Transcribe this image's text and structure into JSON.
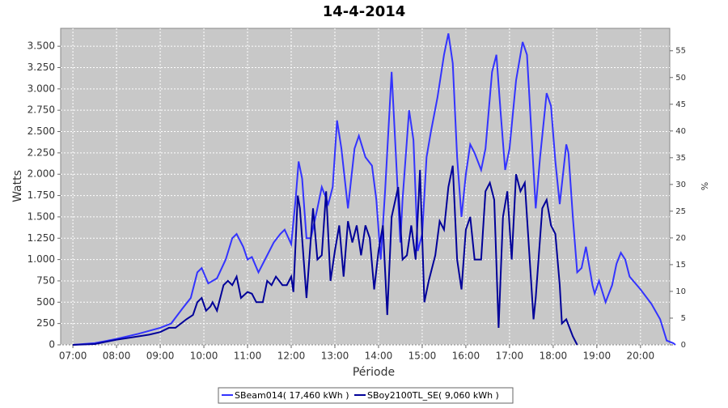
{
  "chart_data": {
    "type": "line",
    "title": "14-4-2014",
    "x_label": "Période",
    "y_label": "Watts",
    "y2_label": "%",
    "xlim": [
      6.72,
      20.67
    ],
    "xticks": [
      {
        "value": 7,
        "label": "07:00"
      },
      {
        "value": 8,
        "label": "08:00"
      },
      {
        "value": 9,
        "label": "09:00"
      },
      {
        "value": 10,
        "label": "10:00"
      },
      {
        "value": 11,
        "label": "11:00"
      },
      {
        "value": 12,
        "label": "12:00"
      },
      {
        "value": 13,
        "label": "13:00"
      },
      {
        "value": 14,
        "label": "14:00"
      },
      {
        "value": 15,
        "label": "15:00"
      },
      {
        "value": 16,
        "label": "16:00"
      },
      {
        "value": 17,
        "label": "17:00"
      },
      {
        "value": 18,
        "label": "18:00"
      },
      {
        "value": 19,
        "label": "19:00"
      },
      {
        "value": 20,
        "label": "20:00"
      }
    ],
    "ylim": [
      0,
      3710
    ],
    "yticks": [
      0,
      250,
      500,
      750,
      {
        "value": 1000,
        "label": "1.000"
      },
      {
        "value": 1250,
        "label": "1.250"
      },
      {
        "value": 1500,
        "label": "1.500"
      },
      {
        "value": 1750,
        "label": "1.750"
      },
      {
        "value": 2000,
        "label": "2.000"
      },
      {
        "value": 2250,
        "label": "2.250"
      },
      {
        "value": 2500,
        "label": "2.500"
      },
      {
        "value": 2750,
        "label": "2.750"
      },
      {
        "value": 3000,
        "label": "3.000"
      },
      {
        "value": 3250,
        "label": "3.250"
      },
      {
        "value": 3500,
        "label": "3.500"
      }
    ],
    "y2lim": [
      0,
      59.2
    ],
    "y2ticks": [
      0,
      5,
      10,
      15,
      20,
      25,
      30,
      35,
      40,
      45,
      50,
      55
    ],
    "grid": true,
    "series": [
      {
        "name": "SBeam014( 17,460 kWh )",
        "color": "#3333ff",
        "x": [
          7.0,
          7.5,
          8.0,
          8.5,
          9.0,
          9.25,
          9.5,
          9.7,
          9.85,
          9.95,
          10.1,
          10.3,
          10.5,
          10.65,
          10.75,
          10.9,
          11.0,
          11.1,
          11.25,
          11.4,
          11.6,
          11.75,
          11.85,
          12.0,
          12.1,
          12.17,
          12.25,
          12.35,
          12.45,
          12.6,
          12.7,
          12.85,
          12.95,
          13.05,
          13.15,
          13.3,
          13.45,
          13.55,
          13.7,
          13.85,
          13.95,
          14.05,
          14.15,
          14.3,
          14.4,
          14.5,
          14.55,
          14.7,
          14.8,
          14.9,
          15.0,
          15.1,
          15.2,
          15.35,
          15.5,
          15.6,
          15.7,
          15.8,
          15.9,
          16.0,
          16.1,
          16.2,
          16.35,
          16.45,
          16.6,
          16.7,
          16.8,
          16.9,
          17.0,
          17.15,
          17.3,
          17.4,
          17.5,
          17.6,
          17.7,
          17.85,
          17.95,
          18.05,
          18.15,
          18.3,
          18.35,
          18.45,
          18.55,
          18.65,
          18.75,
          18.9,
          18.95,
          19.05,
          19.2,
          19.35,
          19.45,
          19.55,
          19.65,
          19.75,
          20.0,
          20.25,
          20.45,
          20.6,
          20.75,
          20.8
        ],
        "values": [
          0,
          20,
          70,
          130,
          200,
          250,
          420,
          550,
          850,
          900,
          720,
          780,
          1000,
          1250,
          1300,
          1150,
          1000,
          1030,
          850,
          1000,
          1200,
          1300,
          1350,
          1180,
          1700,
          2150,
          1950,
          1250,
          1250,
          1600,
          1850,
          1650,
          1850,
          2630,
          2300,
          1600,
          2300,
          2450,
          2200,
          2100,
          1700,
          1000,
          1800,
          3200,
          2200,
          1200,
          1700,
          2750,
          2400,
          1100,
          1300,
          2200,
          2500,
          2900,
          3400,
          3650,
          3300,
          2200,
          1500,
          2000,
          2350,
          2250,
          2050,
          2300,
          3200,
          3400,
          2700,
          2050,
          2300,
          3100,
          3550,
          3400,
          2500,
          1600,
          2200,
          2950,
          2800,
          2150,
          1650,
          2350,
          2250,
          1500,
          850,
          900,
          1150,
          700,
          600,
          750,
          500,
          700,
          950,
          1080,
          1000,
          800,
          650,
          480,
          300,
          50,
          20,
          0
        ]
      },
      {
        "name": "SBoy2100TL_SE( 9,060 kWh )",
        "color": "#000099",
        "x": [
          7.0,
          7.5,
          8.0,
          8.5,
          8.75,
          9.0,
          9.2,
          9.35,
          9.6,
          9.75,
          9.85,
          9.95,
          10.05,
          10.15,
          10.2,
          10.3,
          10.45,
          10.55,
          10.65,
          10.75,
          10.85,
          11.0,
          11.1,
          11.2,
          11.35,
          11.45,
          11.55,
          11.65,
          11.8,
          11.9,
          12.0,
          12.05,
          12.15,
          12.2,
          12.35,
          12.5,
          12.6,
          12.7,
          12.8,
          12.9,
          13.0,
          13.1,
          13.2,
          13.3,
          13.4,
          13.5,
          13.6,
          13.7,
          13.8,
          13.9,
          14.0,
          14.1,
          14.2,
          14.3,
          14.45,
          14.55,
          14.65,
          14.75,
          14.85,
          14.95,
          15.05,
          15.15,
          15.3,
          15.4,
          15.5,
          15.6,
          15.7,
          15.8,
          15.9,
          16.0,
          16.1,
          16.2,
          16.35,
          16.45,
          16.55,
          16.65,
          16.75,
          16.85,
          16.95,
          17.05,
          17.15,
          17.25,
          17.35,
          17.45,
          17.55,
          17.6,
          17.75,
          17.85,
          17.95,
          18.05,
          18.15,
          18.2,
          18.3,
          18.45,
          18.55
        ],
        "values": [
          0,
          10,
          60,
          100,
          120,
          150,
          200,
          200,
          300,
          350,
          500,
          550,
          400,
          450,
          500,
          400,
          700,
          750,
          700,
          800,
          550,
          620,
          600,
          500,
          500,
          750,
          700,
          800,
          700,
          700,
          800,
          620,
          1750,
          1600,
          550,
          1600,
          1000,
          1050,
          1800,
          750,
          1100,
          1400,
          800,
          1450,
          1200,
          1400,
          1050,
          1400,
          1250,
          650,
          1100,
          1400,
          350,
          1500,
          1850,
          1000,
          1050,
          1400,
          1000,
          2050,
          500,
          750,
          1050,
          1450,
          1350,
          1850,
          2100,
          1000,
          650,
          1350,
          1500,
          1000,
          1000,
          1800,
          1900,
          1700,
          200,
          1500,
          1800,
          1000,
          2000,
          1800,
          1900,
          1100,
          300,
          550,
          1600,
          1700,
          1400,
          1300,
          700,
          250,
          300,
          100,
          0
        ]
      }
    ]
  }
}
